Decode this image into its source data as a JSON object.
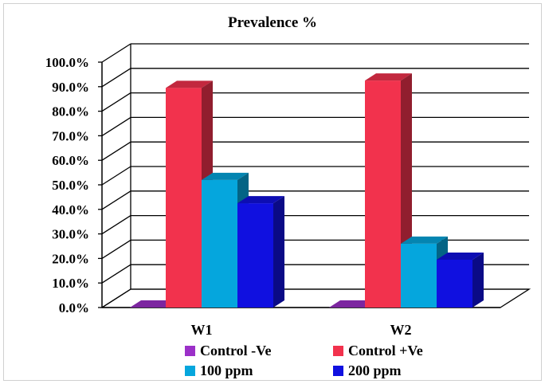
{
  "chart_data": {
    "type": "bar",
    "title": "Prevalence %",
    "categories": [
      "W1",
      "W2"
    ],
    "series": [
      {
        "name": "Control -Ve",
        "color": "#9b30c8",
        "values": [
          0,
          0
        ]
      },
      {
        "name": "Control +Ve",
        "color": "#f2324d",
        "values": [
          89.5,
          92.5
        ]
      },
      {
        "name": "100 ppm",
        "color": "#05a6dd",
        "values": [
          52,
          26
        ]
      },
      {
        "name": "200 ppm",
        "color": "#1010e0",
        "values": [
          42.5,
          19.5
        ]
      }
    ],
    "ylim": [
      0,
      100
    ],
    "yticks": [
      "0.0%",
      "10.0%",
      "20.0%",
      "30.0%",
      "40.0%",
      "50.0%",
      "60.0%",
      "70.0%",
      "80.0%",
      "90.0%",
      "100.0%"
    ],
    "grid": true,
    "legend_position": "bottom",
    "xlabel": "",
    "ylabel": ""
  }
}
